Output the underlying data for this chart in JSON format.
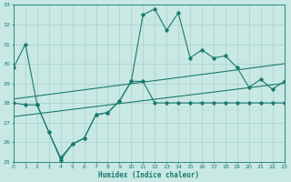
{
  "xlabel": "Humidex (Indice chaleur)",
  "x": [
    0,
    1,
    2,
    3,
    4,
    5,
    6,
    7,
    8,
    9,
    10,
    11,
    12,
    13,
    14,
    15,
    16,
    17,
    18,
    19,
    20,
    21,
    22,
    23
  ],
  "y_main": [
    29.8,
    31.0,
    27.9,
    26.5,
    25.1,
    25.9,
    26.2,
    27.4,
    27.5,
    28.1,
    29.1,
    32.5,
    32.8,
    31.7,
    32.6,
    30.3,
    30.7,
    30.3,
    30.4,
    29.8,
    28.8,
    29.2,
    28.7,
    29.1
  ],
  "y_lower": [
    28.0,
    27.9,
    27.9,
    26.5,
    25.2,
    25.9,
    26.2,
    27.4,
    27.5,
    28.1,
    29.1,
    29.1,
    28.0,
    28.0,
    28.0,
    28.0,
    28.0,
    28.0,
    28.0,
    28.0,
    28.0,
    28.0,
    28.0,
    28.0
  ],
  "trend1_x": [
    0,
    23
  ],
  "trend1_y": [
    27.3,
    29.0
  ],
  "trend2_x": [
    0,
    23
  ],
  "trend2_y": [
    28.2,
    30.0
  ],
  "line_color": "#1a7a6e",
  "bg_color": "#c8e8e4",
  "grid_color": "#aacfca",
  "ylim": [
    25,
    33
  ],
  "xlim": [
    0,
    23
  ],
  "yticks": [
    25,
    26,
    27,
    28,
    29,
    30,
    31,
    32,
    33
  ],
  "xticks": [
    0,
    1,
    2,
    3,
    4,
    5,
    6,
    7,
    8,
    9,
    10,
    11,
    12,
    13,
    14,
    15,
    16,
    17,
    18,
    19,
    20,
    21,
    22,
    23
  ]
}
